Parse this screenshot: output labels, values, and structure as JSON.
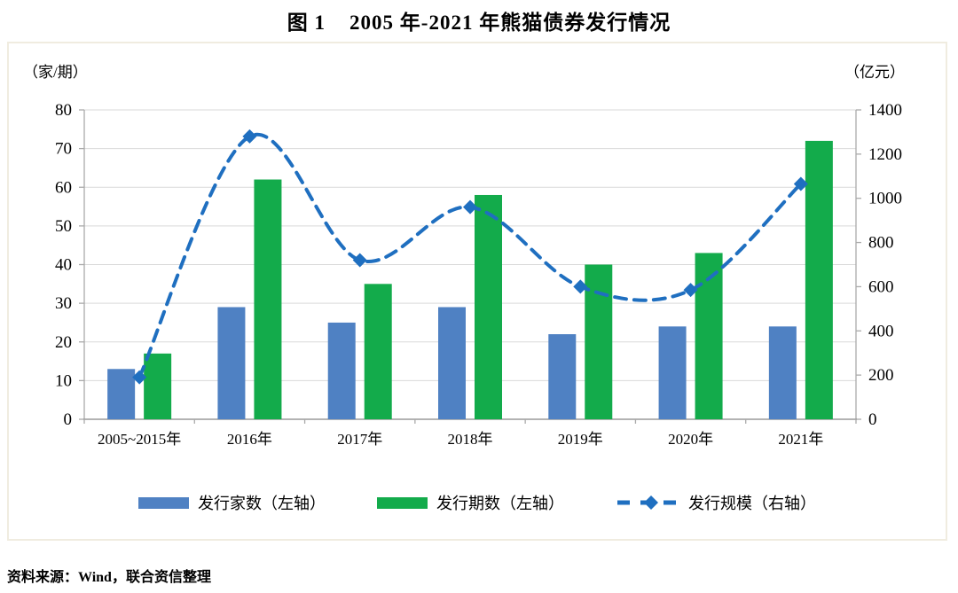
{
  "page": {
    "title": "图 1    2005 年-2021 年熊猫债券发行情况",
    "source_note": "资料来源：Wind，联合资信整理"
  },
  "colors": {
    "issuer_bar": "#4f81c3",
    "issue_bar": "#13ab4b",
    "scale_line": "#1f6fc0",
    "grid_line": "#d9d9d9",
    "axis_line": "#aaaaaa",
    "bottom_axis_line": "#9a9a9a",
    "box_border": "#f0ece0",
    "text": "#000000"
  },
  "legend": {
    "items": [
      {
        "label": "发行家数（左轴）",
        "swatch": "bar",
        "color_key": "issuer_bar"
      },
      {
        "label": "发行期数（左轴）",
        "swatch": "bar",
        "color_key": "issue_bar"
      },
      {
        "label": "发行规模（右轴）",
        "swatch": "dashed-line-diamond",
        "color_key": "scale_line"
      }
    ]
  },
  "chart_data": {
    "type": "combo_bar_line",
    "title": "图 1 2005 年-2021 年熊猫债券发行情况",
    "categories": [
      "2005~2015年",
      "2016年",
      "2017年",
      "2018年",
      "2019年",
      "2020年",
      "2021年"
    ],
    "series": [
      {
        "name": "发行家数（左轴）",
        "type": "bar",
        "axis": "left",
        "values": [
          13,
          29,
          25,
          29,
          22,
          24,
          24
        ]
      },
      {
        "name": "发行期数（左轴）",
        "type": "bar",
        "axis": "left",
        "values": [
          17,
          62,
          35,
          58,
          40,
          43,
          72
        ]
      },
      {
        "name": "发行规模（右轴）",
        "type": "line",
        "axis": "right",
        "style": "smooth-dashed",
        "marker": "diamond",
        "values": [
          190,
          1280,
          720,
          960,
          600,
          585,
          1065
        ]
      }
    ],
    "left_axis": {
      "unit": "（家/期）",
      "min": 0,
      "max": 80,
      "step": 10
    },
    "right_axis": {
      "unit": "（亿元）",
      "min": 0,
      "max": 1400,
      "step": 200
    },
    "grid": true,
    "legend_position": "bottom"
  }
}
